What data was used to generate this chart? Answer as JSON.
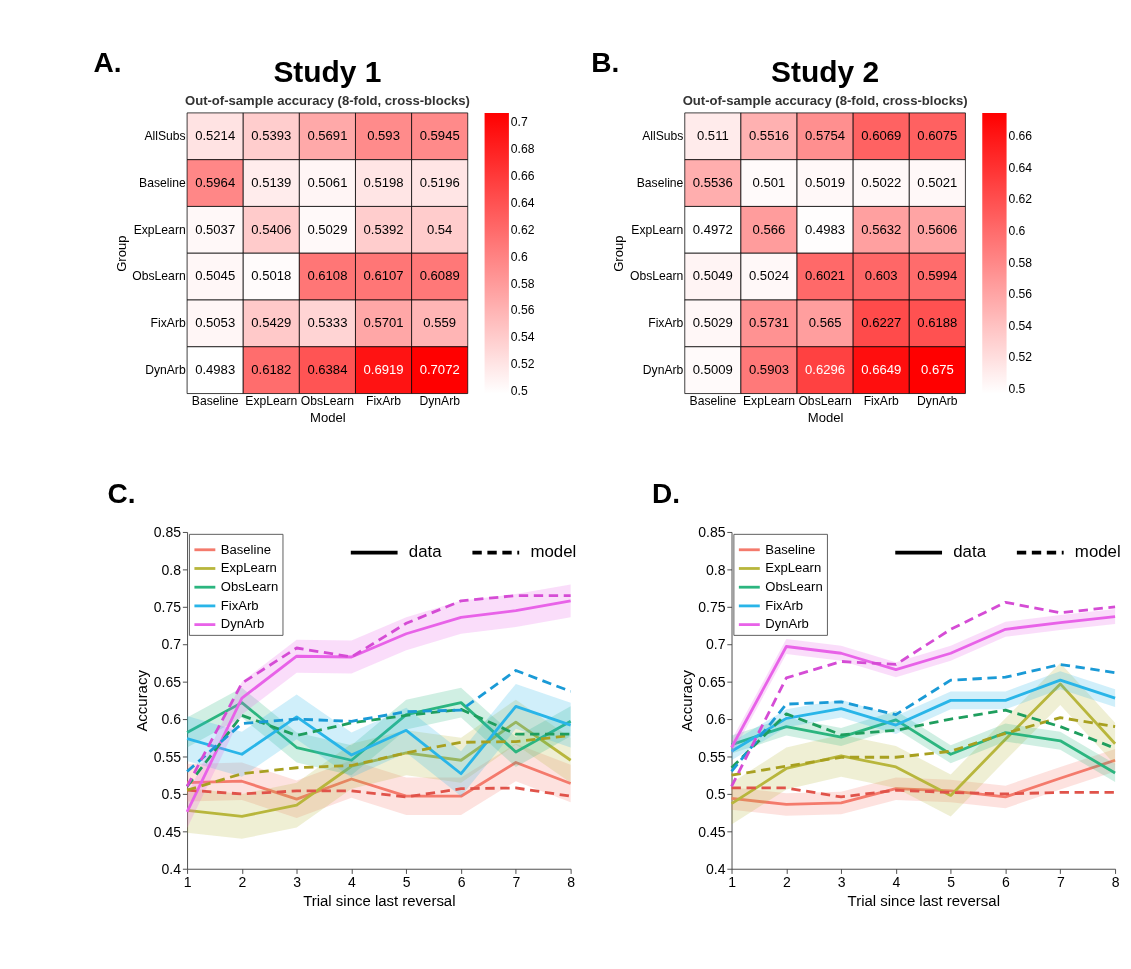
{
  "chart_data": [
    {
      "type": "heatmap",
      "title": "Study 1",
      "subtitle": "Out-of-sample accuracy (8-fold, cross-blocks)",
      "xlabel": "Model",
      "ylabel": "Group",
      "annotations": [
        "A."
      ],
      "categories": [
        "Baseline",
        "ExpLearn",
        "ObsLearn",
        "FixArb",
        "DynArb"
      ],
      "y_categories": [
        "AllSubs",
        "Baseline",
        "ExpLearn",
        "ObsLearn",
        "FixArb",
        "DynArb"
      ],
      "cells": [
        [
          0.5214,
          0.5393,
          0.5691,
          0.593,
          0.5945
        ],
        [
          0.5964,
          0.5139,
          0.5061,
          0.5198,
          0.5196
        ],
        [
          0.5037,
          0.5406,
          0.5029,
          0.5392,
          0.54
        ],
        [
          0.5045,
          0.5018,
          0.6108,
          0.6107,
          0.6089
        ],
        [
          0.5053,
          0.5429,
          0.5333,
          0.5701,
          0.559
        ],
        [
          0.4983,
          0.6182,
          0.6384,
          0.6919,
          0.7072
        ]
      ],
      "colors": [
        "#ffffff",
        "#ff0000"
      ],
      "clim": [
        0.4983,
        0.7072
      ],
      "cticks": [
        0.5,
        0.52,
        0.54,
        0.56,
        0.58,
        0.6,
        0.62,
        0.64,
        0.66,
        0.68,
        0.7
      ],
      "data_labels": true
    },
    {
      "type": "heatmap",
      "title": "Study 2",
      "subtitle": "Out-of-sample accuracy (8-fold, cross-blocks)",
      "xlabel": "Model",
      "ylabel": "Group",
      "annotations": [
        "B."
      ],
      "categories": [
        "Baseline",
        "ExpLearn",
        "ObsLearn",
        "FixArb",
        "DynArb"
      ],
      "y_categories": [
        "AllSubs",
        "Baseline",
        "ExpLearn",
        "ObsLearn",
        "FixArb",
        "DynArb"
      ],
      "cells": [
        [
          0.511,
          0.5516,
          0.5754,
          0.6069,
          0.6075
        ],
        [
          0.5536,
          0.501,
          0.5019,
          0.5022,
          0.5021
        ],
        [
          0.4972,
          0.566,
          0.4983,
          0.5632,
          0.5606
        ],
        [
          0.5049,
          0.5024,
          0.6021,
          0.603,
          0.5994
        ],
        [
          0.5029,
          0.5731,
          0.565,
          0.6227,
          0.6188
        ],
        [
          0.5009,
          0.5903,
          0.6296,
          0.6649,
          0.675
        ]
      ],
      "colors": [
        "#ffffff",
        "#ff0000"
      ],
      "clim": [
        0.4972,
        0.675
      ],
      "cticks": [
        0.5,
        0.52,
        0.54,
        0.56,
        0.58,
        0.6,
        0.62,
        0.64,
        0.66
      ],
      "data_labels": true
    },
    {
      "type": "line",
      "xlabel": "Trial since last reversal",
      "ylabel": "Accuracy",
      "annotations": [
        "C.",
        "data",
        "model"
      ],
      "x": [
        1,
        2,
        3,
        4,
        5,
        6,
        7,
        8
      ],
      "xlim": [
        1,
        8
      ],
      "xticks": [
        1,
        2,
        3,
        4,
        5,
        6,
        7,
        8
      ],
      "ylim": [
        0.4,
        0.85
      ],
      "yticks": [
        0.4,
        0.45,
        0.5,
        0.55,
        0.6,
        0.65,
        0.7,
        0.75,
        0.8,
        0.85
      ],
      "legend": "top left",
      "grid": false,
      "marker": "none",
      "series": [
        {
          "name": "Baseline",
          "color": "#f47a6c",
          "line_style": "solid",
          "values": [
            0.515,
            0.517,
            0.493,
            0.52,
            0.497,
            0.497,
            0.542,
            0.514
          ],
          "lower": [
            0.49,
            0.492,
            0.468,
            0.495,
            0.472,
            0.472,
            0.517,
            0.489
          ],
          "upper": [
            0.54,
            0.542,
            0.518,
            0.545,
            0.522,
            0.522,
            0.567,
            0.539
          ]
        },
        {
          "name": "ExpLearn",
          "color": "#b8b63c",
          "line_style": "solid",
          "values": [
            0.478,
            0.47,
            0.485,
            0.537,
            0.555,
            0.545,
            0.596,
            0.545
          ],
          "lower": [
            0.448,
            0.44,
            0.455,
            0.507,
            0.525,
            0.515,
            0.566,
            0.515
          ],
          "upper": [
            0.508,
            0.5,
            0.515,
            0.567,
            0.585,
            0.575,
            0.626,
            0.575
          ]
        },
        {
          "name": "ObsLearn",
          "color": "#2bb57f",
          "line_style": "solid",
          "values": [
            0.582,
            0.622,
            0.562,
            0.545,
            0.606,
            0.622,
            0.556,
            0.597
          ],
          "lower": [
            0.562,
            0.602,
            0.542,
            0.525,
            0.586,
            0.602,
            0.536,
            0.577
          ],
          "upper": [
            0.602,
            0.642,
            0.582,
            0.565,
            0.626,
            0.642,
            0.576,
            0.617
          ]
        },
        {
          "name": "FixArb",
          "color": "#29b5e8",
          "line_style": "solid",
          "values": [
            0.574,
            0.553,
            0.603,
            0.552,
            0.585,
            0.527,
            0.617,
            0.592
          ],
          "lower": [
            0.544,
            0.523,
            0.573,
            0.522,
            0.555,
            0.497,
            0.587,
            0.562
          ],
          "upper": [
            0.604,
            0.583,
            0.633,
            0.582,
            0.615,
            0.557,
            0.647,
            0.622
          ]
        },
        {
          "name": "DynArb",
          "color": "#e862e8",
          "line_style": "solid",
          "values": [
            0.476,
            0.628,
            0.684,
            0.683,
            0.714,
            0.736,
            0.745,
            0.758
          ],
          "lower": [
            0.454,
            0.606,
            0.662,
            0.661,
            0.692,
            0.714,
            0.723,
            0.736
          ],
          "upper": [
            0.498,
            0.65,
            0.706,
            0.705,
            0.736,
            0.758,
            0.767,
            0.78
          ]
        },
        {
          "color": "#e0534a",
          "line_style": "dashed",
          "values": [
            0.505,
            0.5,
            0.504,
            0.504,
            0.496,
            0.507,
            0.508,
            0.497
          ]
        },
        {
          "color": "#a8a020",
          "line_style": "dashed",
          "values": [
            0.505,
            0.527,
            0.535,
            0.538,
            0.555,
            0.569,
            0.57,
            0.578
          ]
        },
        {
          "color": "#1f9e5e",
          "line_style": "dashed",
          "values": [
            0.51,
            0.605,
            0.578,
            0.595,
            0.605,
            0.613,
            0.58,
            0.58
          ]
        },
        {
          "color": "#1a9ad6",
          "line_style": "dashed",
          "values": [
            0.53,
            0.594,
            0.6,
            0.597,
            0.61,
            0.612,
            0.665,
            0.637
          ]
        },
        {
          "color": "#d54cd5",
          "line_style": "dashed",
          "values": [
            0.51,
            0.648,
            0.695,
            0.683,
            0.728,
            0.758,
            0.765,
            0.765
          ]
        }
      ]
    },
    {
      "type": "line",
      "xlabel": "Trial since last reversal",
      "ylabel": "Accuracy",
      "annotations": [
        "D.",
        "data",
        "model"
      ],
      "x": [
        1,
        2,
        3,
        4,
        5,
        6,
        7,
        8
      ],
      "xlim": [
        1,
        8
      ],
      "xticks": [
        1,
        2,
        3,
        4,
        5,
        6,
        7,
        8
      ],
      "ylim": [
        0.4,
        0.85
      ],
      "yticks": [
        0.4,
        0.45,
        0.5,
        0.55,
        0.6,
        0.65,
        0.7,
        0.75,
        0.8,
        0.85
      ],
      "legend": "top left",
      "grid": false,
      "marker": "none",
      "series": [
        {
          "name": "Baseline",
          "color": "#f47a6c",
          "line_style": "solid",
          "values": [
            0.494,
            0.486,
            0.488,
            0.507,
            0.504,
            0.496,
            0.521,
            0.545
          ],
          "lower": [
            0.479,
            0.471,
            0.473,
            0.492,
            0.489,
            0.481,
            0.506,
            0.53
          ],
          "upper": [
            0.509,
            0.501,
            0.503,
            0.522,
            0.519,
            0.511,
            0.536,
            0.56
          ]
        },
        {
          "name": "ExpLearn",
          "color": "#b8b63c",
          "line_style": "solid",
          "values": [
            0.487,
            0.534,
            0.551,
            0.536,
            0.498,
            0.573,
            0.647,
            0.567
          ],
          "lower": [
            0.459,
            0.506,
            0.523,
            0.508,
            0.47,
            0.545,
            0.619,
            0.539
          ],
          "upper": [
            0.515,
            0.562,
            0.579,
            0.564,
            0.526,
            0.601,
            0.675,
            0.595
          ]
        },
        {
          "name": "ObsLearn",
          "color": "#2bb57f",
          "line_style": "solid",
          "values": [
            0.566,
            0.59,
            0.576,
            0.599,
            0.553,
            0.582,
            0.571,
            0.528
          ],
          "lower": [
            0.554,
            0.578,
            0.564,
            0.587,
            0.541,
            0.57,
            0.559,
            0.516
          ],
          "upper": [
            0.578,
            0.602,
            0.588,
            0.611,
            0.565,
            0.594,
            0.583,
            0.54
          ]
        },
        {
          "name": "FixArb",
          "color": "#29b5e8",
          "line_style": "solid",
          "values": [
            0.557,
            0.601,
            0.614,
            0.592,
            0.625,
            0.625,
            0.652,
            0.628
          ],
          "lower": [
            0.545,
            0.589,
            0.602,
            0.58,
            0.613,
            0.613,
            0.64,
            0.616
          ],
          "upper": [
            0.569,
            0.613,
            0.626,
            0.604,
            0.637,
            0.637,
            0.664,
            0.64
          ]
        },
        {
          "name": "DynArb",
          "color": "#e862e8",
          "line_style": "solid",
          "values": [
            0.562,
            0.697,
            0.688,
            0.666,
            0.688,
            0.72,
            0.729,
            0.737
          ],
          "lower": [
            0.552,
            0.687,
            0.678,
            0.656,
            0.678,
            0.71,
            0.719,
            0.727
          ],
          "upper": [
            0.572,
            0.707,
            0.698,
            0.676,
            0.698,
            0.73,
            0.739,
            0.747
          ]
        },
        {
          "color": "#e0534a",
          "line_style": "dashed",
          "values": [
            0.508,
            0.508,
            0.496,
            0.505,
            0.502,
            0.5,
            0.502,
            0.502
          ]
        },
        {
          "color": "#a8a020",
          "line_style": "dashed",
          "values": [
            0.525,
            0.537,
            0.549,
            0.549,
            0.557,
            0.581,
            0.602,
            0.59
          ]
        },
        {
          "color": "#1f9e5e",
          "line_style": "dashed",
          "values": [
            0.535,
            0.607,
            0.579,
            0.585,
            0.6,
            0.612,
            0.59,
            0.561
          ]
        },
        {
          "color": "#1a9ad6",
          "line_style": "dashed",
          "values": [
            0.53,
            0.62,
            0.623,
            0.606,
            0.652,
            0.656,
            0.673,
            0.662
          ]
        },
        {
          "color": "#d54cd5",
          "line_style": "dashed",
          "values": [
            0.51,
            0.655,
            0.677,
            0.673,
            0.72,
            0.756,
            0.742,
            0.75
          ]
        }
      ]
    }
  ]
}
